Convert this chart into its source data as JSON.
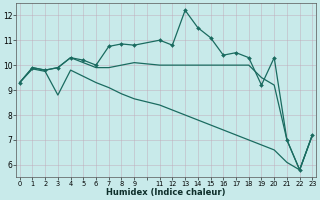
{
  "xlabel": "Humidex (Indice chaleur)",
  "bg_color": "#c8eaea",
  "grid_color": "#aaaacc",
  "line_color": "#1a6b60",
  "xlim": [
    -0.3,
    23.3
  ],
  "ylim": [
    5.5,
    12.5
  ],
  "yticks": [
    6,
    7,
    8,
    9,
    10,
    11,
    12
  ],
  "xtick_positions": [
    0,
    1,
    2,
    3,
    4,
    5,
    6,
    7,
    8,
    9,
    10,
    11,
    12,
    13,
    14,
    15,
    16,
    17,
    18,
    19,
    20,
    21,
    22,
    23
  ],
  "xtick_labels": [
    "0",
    "1",
    "2",
    "3",
    "4",
    "5",
    "6",
    "7",
    "8",
    "9",
    "",
    "11",
    "12",
    "13",
    "14",
    "15",
    "16",
    "17",
    "18",
    "19",
    "20",
    "21",
    "22",
    "23"
  ],
  "line1_x": [
    0,
    1,
    2,
    3,
    4,
    5,
    6,
    7,
    8,
    9,
    11,
    12,
    13,
    14,
    15,
    16,
    17,
    18,
    19,
    20,
    21,
    22,
    23
  ],
  "line1_y": [
    9.3,
    9.9,
    9.8,
    9.9,
    10.3,
    10.2,
    10.0,
    10.75,
    10.85,
    10.8,
    11.0,
    10.8,
    12.2,
    11.5,
    11.1,
    10.4,
    10.5,
    10.3,
    9.2,
    10.3,
    7.0,
    5.8,
    7.2
  ],
  "line2_x": [
    0,
    1,
    2,
    3,
    4,
    5,
    6,
    7,
    8,
    9,
    11,
    12,
    13,
    14,
    15,
    16,
    17,
    18,
    19,
    20,
    21,
    22,
    23
  ],
  "line2_y": [
    9.3,
    9.9,
    9.8,
    9.9,
    10.3,
    10.1,
    9.9,
    9.9,
    10.0,
    10.1,
    10.0,
    10.0,
    10.0,
    10.0,
    10.0,
    10.0,
    10.0,
    10.0,
    9.5,
    9.2,
    7.0,
    5.8,
    7.2
  ],
  "line3_x": [
    0,
    1,
    2,
    3,
    4,
    5,
    6,
    7,
    8,
    9,
    11,
    12,
    13,
    14,
    15,
    16,
    17,
    18,
    19,
    20,
    21,
    22,
    23
  ],
  "line3_y": [
    9.3,
    9.85,
    9.75,
    8.8,
    9.8,
    9.55,
    9.3,
    9.1,
    8.85,
    8.65,
    8.4,
    8.2,
    8.0,
    7.8,
    7.6,
    7.4,
    7.2,
    7.0,
    6.8,
    6.6,
    6.1,
    5.8,
    7.2
  ]
}
